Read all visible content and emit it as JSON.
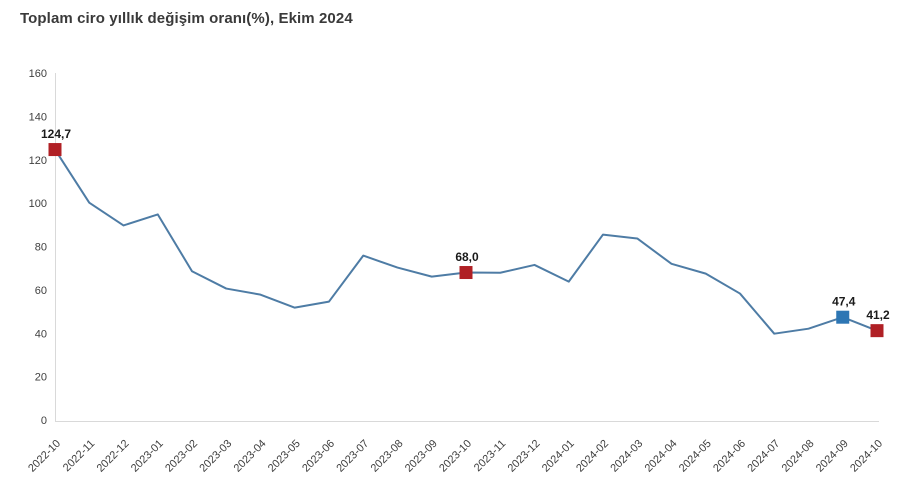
{
  "page": {
    "title": "Toplam ciro yıllık değişim oranı(%), Ekim 2024"
  },
  "chart_data": {
    "type": "line",
    "title": "Toplam ciro yıllık değişim oranı(%), Ekim 2024",
    "xlabel": "",
    "ylabel": "",
    "x": [
      "2022-10",
      "2022-11",
      "2022-12",
      "2023-01",
      "2023-02",
      "2023-03",
      "2023-04",
      "2023-05",
      "2023-06",
      "2023-07",
      "2023-08",
      "2023-09",
      "2023-10",
      "2023-11",
      "2023-12",
      "2024-01",
      "2024-02",
      "2024-03",
      "2024-04",
      "2024-05",
      "2024-06",
      "2024-07",
      "2024-08",
      "2024-09",
      "2024-10"
    ],
    "series": [
      {
        "name": "Toplam ciro yıllık değişim oranı (%)",
        "values": [
          124.7,
          100.2,
          89.7,
          94.8,
          68.6,
          60.6,
          57.8,
          51.8,
          54.6,
          75.8,
          70.3,
          66.1,
          68.0,
          67.9,
          71.5,
          63.8,
          85.5,
          83.7,
          72.0,
          67.5,
          58.3,
          39.8,
          42.1,
          47.4,
          41.2
        ]
      }
    ],
    "ylim": [
      0,
      160
    ],
    "yticks": [
      0,
      20,
      40,
      60,
      80,
      100,
      120,
      140,
      160
    ],
    "grid": false,
    "legend_position": "none",
    "annotations": [
      {
        "x": "2022-10",
        "value": 124.7,
        "label": "124,7",
        "marker": "square",
        "color": "#b02025"
      },
      {
        "x": "2023-10",
        "value": 68.0,
        "label": "68,0",
        "marker": "square",
        "color": "#b02025"
      },
      {
        "x": "2024-09",
        "value": 47.4,
        "label": "47,4",
        "marker": "square",
        "color": "#2d76b4"
      },
      {
        "x": "2024-10",
        "value": 41.2,
        "label": "41,2",
        "marker": "square",
        "color": "#b02025"
      }
    ],
    "colors": {
      "line": "#4e7ca5",
      "marker_red": "#b02025",
      "marker_blue": "#2d76b4",
      "axis_line": "#d9d9d9",
      "tick_text": "#3f3f3f",
      "label_text": "#1a1a1a",
      "title_text": "#3a3a3a"
    }
  }
}
